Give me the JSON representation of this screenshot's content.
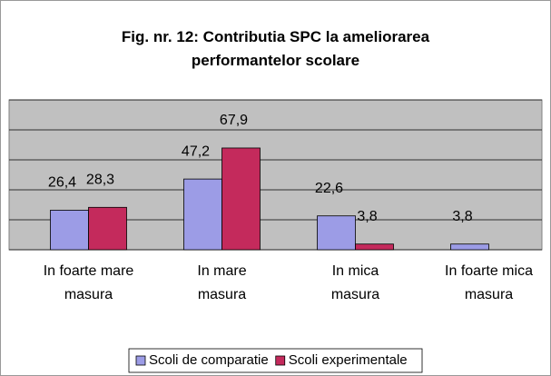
{
  "chart_data": {
    "type": "bar",
    "title": "Fig. nr. 12: Contributia SPC la ameliorarea performantelor scolare",
    "categories": [
      [
        "In foarte mare",
        "masura"
      ],
      [
        "In mare",
        "masura"
      ],
      [
        "In mica",
        "masura"
      ],
      [
        "In foarte mica",
        "masura"
      ]
    ],
    "series": [
      {
        "name": "Scoli de comparatie",
        "color": "#9c9ce6",
        "values": [
          26.4,
          47.2,
          22.6,
          3.8
        ],
        "value_labels": [
          "26,4",
          "47,2",
          "22,6",
          "3,8"
        ]
      },
      {
        "name": "Scoli experimentale",
        "color": "#c42a5c",
        "values": [
          28.3,
          67.9,
          3.8,
          null
        ],
        "value_labels": [
          "28,3",
          "67,9",
          "3,8",
          null
        ]
      }
    ],
    "ylim": [
      0,
      100
    ],
    "yticks": [
      0,
      20,
      40,
      60,
      80,
      100
    ],
    "grid": true,
    "legend": "bottom"
  }
}
